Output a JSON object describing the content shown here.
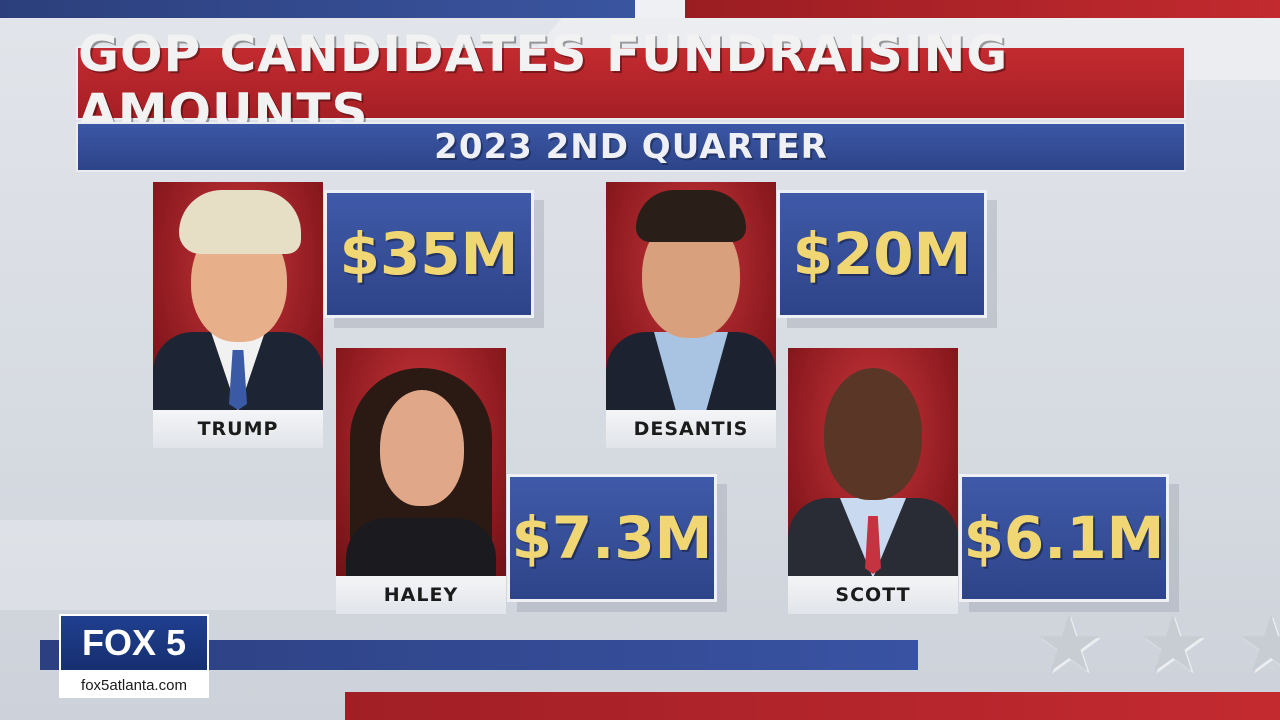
{
  "header": {
    "title": "GOP CANDIDATES FUNDRAISING AMOUNTS",
    "subtitle": "2023 2ND QUARTER"
  },
  "candidates": [
    {
      "name": "TRUMP",
      "amount": "$35M"
    },
    {
      "name": "DESANTIS",
      "amount": "$20M"
    },
    {
      "name": "HALEY",
      "amount": "$7.3M"
    },
    {
      "name": "SCOTT",
      "amount": "$6.1M"
    }
  ],
  "branding": {
    "logo_text": "FOX 5",
    "site": "fox5atlanta.com"
  },
  "colors": {
    "title_red": "#b4252b",
    "subtitle_blue": "#34509a",
    "amount_gold": "#f0d774"
  }
}
